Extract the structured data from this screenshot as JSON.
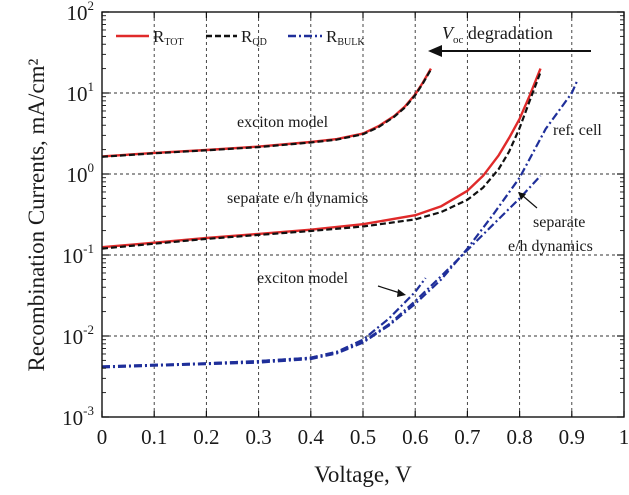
{
  "chart_data": {
    "type": "line",
    "xlabel": "Voltage, V",
    "ylabel": "Recombination Currents, mA/cm²",
    "x_range": [
      0,
      1
    ],
    "y_range": [
      0.001,
      100
    ],
    "y_scale": "log",
    "grid": true,
    "x_ticks": [
      "0",
      "0.1",
      "0.2",
      "0.3",
      "0.4",
      "0.5",
      "0.6",
      "0.7",
      "0.8",
      "0.9",
      "1"
    ],
    "y_ticks": [
      {
        "base": "10",
        "exp": "-3",
        "value": 0.001
      },
      {
        "base": "10",
        "exp": "-2",
        "value": 0.01
      },
      {
        "base": "10",
        "exp": "-1",
        "value": 0.1
      },
      {
        "base": "10",
        "exp": "0",
        "value": 1
      },
      {
        "base": "10",
        "exp": "1",
        "value": 10
      },
      {
        "base": "10",
        "exp": "2",
        "value": 100
      }
    ],
    "legend": {
      "placement": "top-left",
      "entries": [
        {
          "main": "R",
          "sub": "TOT",
          "color": "#e02a2a",
          "dash": "solid"
        },
        {
          "main": "R",
          "sub": "QD",
          "color": "#111111",
          "dash": "dashed"
        },
        {
          "main": "R",
          "sub": "BULK",
          "color": "#1f2f9a",
          "dash": "dashdot"
        }
      ]
    },
    "annotations": {
      "voc_main": "V",
      "voc_sub": "oc",
      "voc_rest": " degradation",
      "exciton_top": "exciton model",
      "separate_mid": "separate e/h dynamics",
      "ref_cell": "ref. cell",
      "separate_right_1": "separate",
      "separate_right_2": "e/h dynamics",
      "exciton_bottom": "exciton model"
    },
    "series": [
      {
        "name": "R_TOT (exciton model)",
        "color": "#e02a2a",
        "dash": "solid",
        "x": [
          0,
          0.1,
          0.2,
          0.3,
          0.4,
          0.45,
          0.5,
          0.53,
          0.56,
          0.58,
          0.6,
          0.615,
          0.63
        ],
        "y": [
          1.65,
          1.82,
          1.98,
          2.18,
          2.48,
          2.7,
          3.15,
          3.9,
          5.2,
          6.8,
          9.6,
          13.5,
          20
        ]
      },
      {
        "name": "R_QD (exciton model)",
        "color": "#111111",
        "dash": "dashed",
        "x": [
          0,
          0.1,
          0.2,
          0.3,
          0.4,
          0.45,
          0.5,
          0.53,
          0.56,
          0.58,
          0.6,
          0.615,
          0.63
        ],
        "y": [
          1.63,
          1.8,
          1.96,
          2.15,
          2.45,
          2.66,
          3.1,
          3.8,
          5.1,
          6.6,
          9.4,
          13.2,
          19.5
        ]
      },
      {
        "name": "R_TOT (separate e/h dynamics)",
        "color": "#e02a2a",
        "dash": "solid",
        "x": [
          0,
          0.1,
          0.2,
          0.3,
          0.4,
          0.5,
          0.6,
          0.65,
          0.7,
          0.73,
          0.76,
          0.78,
          0.8,
          0.82,
          0.84
        ],
        "y": [
          0.125,
          0.142,
          0.162,
          0.182,
          0.205,
          0.24,
          0.31,
          0.4,
          0.62,
          0.95,
          1.7,
          2.8,
          4.8,
          9.5,
          20
        ]
      },
      {
        "name": "R_QD (separate e/h dynamics)",
        "color": "#111111",
        "dash": "dashed",
        "x": [
          0,
          0.1,
          0.2,
          0.3,
          0.4,
          0.5,
          0.6,
          0.65,
          0.7,
          0.73,
          0.76,
          0.78,
          0.8,
          0.82,
          0.84
        ],
        "y": [
          0.12,
          0.138,
          0.158,
          0.177,
          0.198,
          0.225,
          0.275,
          0.34,
          0.48,
          0.68,
          1.15,
          1.9,
          3.7,
          8.2,
          18
        ]
      },
      {
        "name": "R_BULK (ref. cell)",
        "color": "#1f2f9a",
        "dash": "dashdot",
        "x": [
          0,
          0.1,
          0.2,
          0.3,
          0.4,
          0.45,
          0.5,
          0.55,
          0.6,
          0.65,
          0.7,
          0.75,
          0.8,
          0.85,
          0.9,
          0.91
        ],
        "y": [
          0.0041,
          0.0043,
          0.0045,
          0.0047,
          0.0052,
          0.0061,
          0.0083,
          0.0135,
          0.025,
          0.05,
          0.12,
          0.32,
          0.9,
          3.6,
          10,
          14
        ]
      },
      {
        "name": "R_BULK (separate e/h dynamics)",
        "color": "#1f2f9a",
        "dash": "dashdot",
        "x": [
          0,
          0.1,
          0.2,
          0.3,
          0.4,
          0.45,
          0.5,
          0.55,
          0.6,
          0.65,
          0.7,
          0.75,
          0.8,
          0.84
        ],
        "y": [
          0.0042,
          0.0044,
          0.0046,
          0.0049,
          0.0054,
          0.0063,
          0.0085,
          0.014,
          0.027,
          0.055,
          0.115,
          0.24,
          0.5,
          0.95
        ]
      },
      {
        "name": "R_BULK (exciton model)",
        "color": "#1f2f9a",
        "dash": "dashdot",
        "x": [
          0,
          0.1,
          0.2,
          0.3,
          0.4,
          0.45,
          0.5,
          0.55,
          0.6,
          0.62
        ],
        "y": [
          0.0042,
          0.0044,
          0.0046,
          0.0049,
          0.0054,
          0.0064,
          0.009,
          0.0165,
          0.035,
          0.052
        ]
      }
    ]
  }
}
